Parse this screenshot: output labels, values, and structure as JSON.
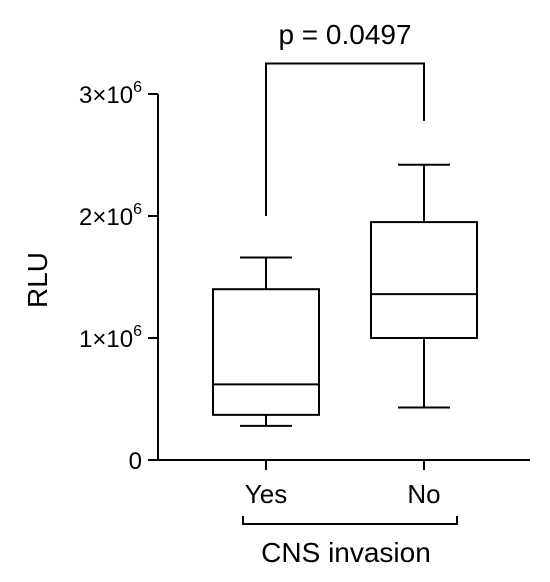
{
  "chart_data": {
    "type": "box",
    "ylabel": "RLU",
    "xlabel": "CNS invasion",
    "ylim": [
      0,
      3000000
    ],
    "yticks": [
      {
        "value": 0,
        "base": "0",
        "exp": ""
      },
      {
        "value": 1000000,
        "base": "1×10",
        "exp": "6"
      },
      {
        "value": 2000000,
        "base": "2×10",
        "exp": "6"
      },
      {
        "value": 3000000,
        "base": "3×10",
        "exp": "6"
      }
    ],
    "categories": [
      "Yes",
      "No"
    ],
    "boxes": [
      {
        "category": "Yes",
        "min": 280000,
        "q1": 370000,
        "median": 620000,
        "q3": 1400000,
        "max": 1660000
      },
      {
        "category": "No",
        "min": 430000,
        "q1": 1000000,
        "median": 1360000,
        "q3": 1950000,
        "max": 2420000
      }
    ],
    "annotation": {
      "text": "p = 0.0497",
      "left_value": 2000000,
      "right_value": 2780000,
      "bracket_value": 3250000
    }
  }
}
